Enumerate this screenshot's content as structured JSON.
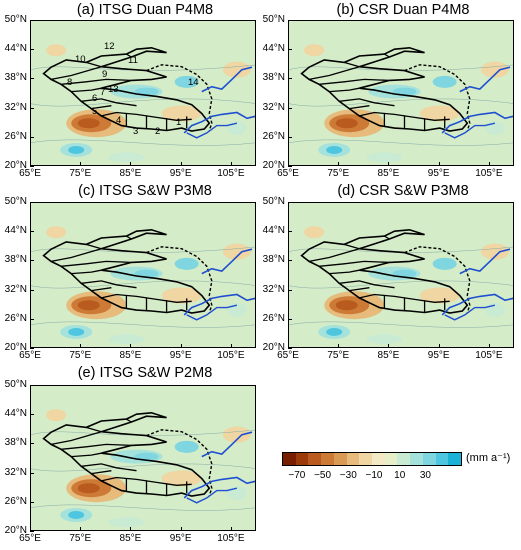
{
  "panels": [
    {
      "id": "a",
      "title": "(a) ITSG Duan P4M8"
    },
    {
      "id": "b",
      "title": "(b) CSR Duan P4M8"
    },
    {
      "id": "c",
      "title": "(c) ITSG S&W P3M8"
    },
    {
      "id": "d",
      "title": "(d) CSR S&W P3M8"
    },
    {
      "id": "e",
      "title": "(e) ITSG S&W P2M8"
    }
  ],
  "axes": {
    "lat_ticks": [
      "50°N",
      "44°N",
      "38°N",
      "32°N",
      "26°N",
      "20°N"
    ],
    "lon_ticks": [
      "65°E",
      "75°E",
      "85°E",
      "95°E",
      "105°E"
    ]
  },
  "region_numbers": [
    "1",
    "2",
    "3",
    "4",
    "5",
    "6",
    "7",
    "8",
    "9",
    "10",
    "11",
    "12",
    "13",
    "14"
  ],
  "colorbar": {
    "unit": "(mm a⁻¹)",
    "labels": [
      "−70",
      "−50",
      "−30",
      "−10",
      "10",
      "30"
    ],
    "colors": [
      "#7a1e00",
      "#9c3a0a",
      "#b95a1e",
      "#cc7a36",
      "#d99a55",
      "#e6bb7c",
      "#efd6a3",
      "#f3e9c4",
      "#e6efc8",
      "#c9ebd3",
      "#a6e2dc",
      "#7fd5e0",
      "#4fc6df",
      "#1bb2d6"
    ]
  }
}
